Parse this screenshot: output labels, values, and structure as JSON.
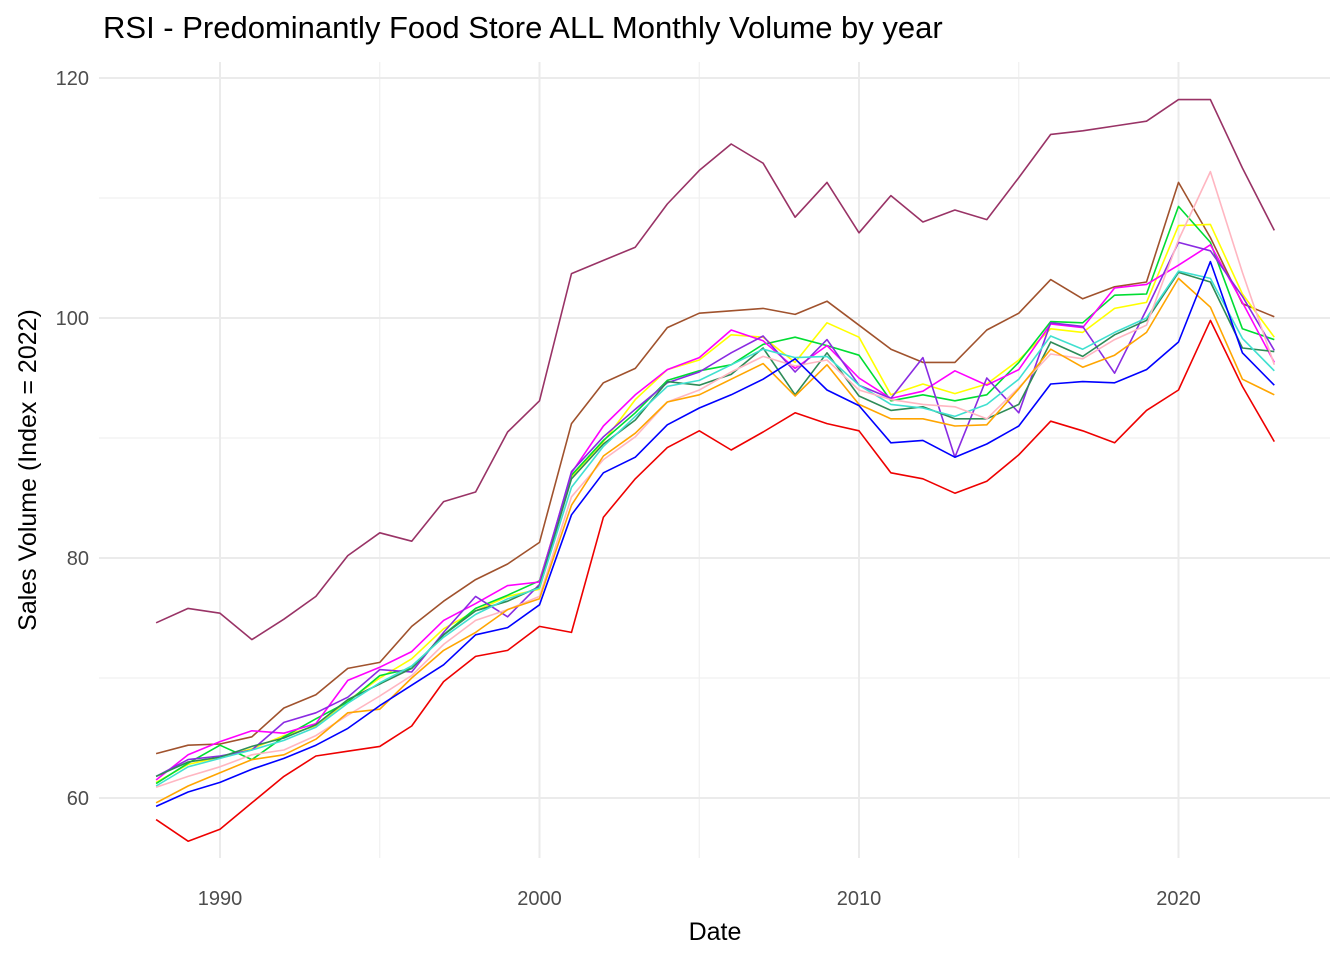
{
  "chart_data": {
    "type": "line",
    "title": "RSI - Predominantly Food Store ALL Monthly Volume by year",
    "xlabel": "Date",
    "ylabel": "Sales Volume (Index = 2022)",
    "xlim": [
      1987.5,
      2023.5
    ],
    "ylim": [
      54.5,
      121.5
    ],
    "xticks": [
      1990,
      2000,
      2010,
      2020
    ],
    "yticks": [
      60,
      80,
      100,
      120
    ],
    "grid": true,
    "legend": "none",
    "x": [
      1988,
      1989,
      1990,
      1991,
      1992,
      1993,
      1994,
      1995,
      1996,
      1997,
      1998,
      1999,
      2000,
      2001,
      2002,
      2003,
      2004,
      2005,
      2006,
      2007,
      2008,
      2009,
      2010,
      2011,
      2012,
      2013,
      2014,
      2015,
      2016,
      2017,
      2018,
      2019,
      2020,
      2021,
      2022,
      2023
    ],
    "series": [
      {
        "color": "#993366",
        "values": [
          74.6,
          75.8,
          75.4,
          73.2,
          74.9,
          76.8,
          80.2,
          82.1,
          81.4,
          84.7,
          85.5,
          90.5,
          93.1,
          103.7,
          104.8,
          105.9,
          109.5,
          112.3,
          114.5,
          112.9,
          108.4,
          111.3,
          107.1,
          110.2,
          108.0,
          109.0,
          108.2,
          111.7,
          115.3,
          115.6,
          116.0,
          116.4,
          118.2,
          118.2,
          112.5,
          107.3
        ]
      },
      {
        "color": "#a0522d",
        "values": [
          63.7,
          64.4,
          64.5,
          65.1,
          67.5,
          68.6,
          70.8,
          71.3,
          74.3,
          76.4,
          78.2,
          79.5,
          81.3,
          91.2,
          94.6,
          95.8,
          99.2,
          100.4,
          100.6,
          100.8,
          100.3,
          101.4,
          99.4,
          97.4,
          96.3,
          96.3,
          99.0,
          100.4,
          103.2,
          101.6,
          102.6,
          103.0,
          111.3,
          106.7,
          101.2,
          100.1
        ]
      },
      {
        "color": "#ffff00",
        "values": [
          61.3,
          62.8,
          63.4,
          64.1,
          65.2,
          66.0,
          68.1,
          70.0,
          71.6,
          74.1,
          75.6,
          76.8,
          77.4,
          86.8,
          89.7,
          93.2,
          95.7,
          96.5,
          98.6,
          98.4,
          96.3,
          99.6,
          98.4,
          93.6,
          94.5,
          93.7,
          94.5,
          96.5,
          99.1,
          98.8,
          100.8,
          101.3,
          107.7,
          107.8,
          102.0,
          98.4
        ]
      },
      {
        "color": "#00dd33",
        "values": [
          61.2,
          62.9,
          64.4,
          63.2,
          65.1,
          66.6,
          68.0,
          70.2,
          70.8,
          73.6,
          75.8,
          76.9,
          78.1,
          86.9,
          89.8,
          92.1,
          94.8,
          95.6,
          96.1,
          97.8,
          98.4,
          97.7,
          96.9,
          93.1,
          93.6,
          93.1,
          93.6,
          96.3,
          99.7,
          99.6,
          101.9,
          102.0,
          109.3,
          106.3,
          99.1,
          98.2
        ]
      },
      {
        "color": "#ff00ff",
        "values": [
          61.5,
          63.6,
          64.7,
          65.6,
          65.4,
          66.2,
          69.8,
          70.9,
          72.2,
          74.8,
          76.2,
          77.7,
          78.0,
          87.1,
          91.0,
          93.6,
          95.7,
          96.7,
          99.0,
          98.1,
          95.8,
          97.7,
          95.0,
          93.3,
          93.9,
          95.6,
          94.4,
          95.7,
          99.5,
          99.2,
          102.5,
          102.8,
          104.4,
          106.1,
          101.3,
          96.3
        ]
      },
      {
        "color": "#8a2be2",
        "values": [
          61.8,
          63.2,
          63.5,
          64.0,
          66.3,
          67.1,
          68.4,
          70.7,
          70.5,
          73.8,
          76.8,
          75.1,
          77.8,
          87.2,
          90.1,
          92.4,
          94.6,
          95.5,
          97.1,
          98.5,
          95.5,
          98.2,
          94.4,
          93.3,
          96.7,
          88.4,
          95.0,
          92.1,
          99.6,
          99.3,
          95.4,
          100.7,
          106.3,
          105.6,
          101.8,
          97.3
        ]
      },
      {
        "color": "#2e8b57",
        "values": [
          61.8,
          63.0,
          63.4,
          64.3,
          65.0,
          66.1,
          68.2,
          69.5,
          70.8,
          73.6,
          75.6,
          76.4,
          77.6,
          86.6,
          89.5,
          91.5,
          94.7,
          94.4,
          95.3,
          97.5,
          93.6,
          97.1,
          93.5,
          92.3,
          92.6,
          91.6,
          91.6,
          92.8,
          98.0,
          96.8,
          98.6,
          99.8,
          103.8,
          103.0,
          97.5,
          97.2
        ]
      },
      {
        "color": "#40e0d0",
        "values": [
          61.0,
          62.6,
          63.3,
          64.0,
          64.8,
          65.9,
          67.9,
          69.6,
          71.0,
          73.4,
          75.3,
          76.6,
          77.5,
          85.9,
          89.3,
          91.8,
          94.3,
          94.8,
          96.1,
          97.4,
          96.7,
          96.8,
          94.4,
          92.8,
          92.5,
          91.8,
          92.8,
          94.9,
          98.5,
          97.4,
          98.8,
          100.0,
          103.9,
          103.3,
          98.3,
          95.6
        ]
      },
      {
        "color": "#ffb6c1",
        "values": [
          60.9,
          61.8,
          62.6,
          63.6,
          64.0,
          65.2,
          66.9,
          68.5,
          70.2,
          72.8,
          74.8,
          75.7,
          76.8,
          85.1,
          88.2,
          90.1,
          93.0,
          94.0,
          95.5,
          96.8,
          96.0,
          96.5,
          94.0,
          93.2,
          92.8,
          92.6,
          91.6,
          94.2,
          97.0,
          96.6,
          98.2,
          99.4,
          106.5,
          112.2,
          103.8,
          96.1
        ]
      },
      {
        "color": "#ffa500",
        "values": [
          59.6,
          61.0,
          62.1,
          63.2,
          63.6,
          64.9,
          67.1,
          67.4,
          70.0,
          72.3,
          73.8,
          75.7,
          76.6,
          84.4,
          88.5,
          90.4,
          93.0,
          93.6,
          94.9,
          96.2,
          93.5,
          96.1,
          92.8,
          91.6,
          91.6,
          91.0,
          91.1,
          94.1,
          97.4,
          95.9,
          96.9,
          98.8,
          103.3,
          100.9,
          94.9,
          93.6
        ]
      },
      {
        "color": "#0000ff",
        "values": [
          59.3,
          60.5,
          61.3,
          62.4,
          63.3,
          64.4,
          65.8,
          67.7,
          69.4,
          71.1,
          73.6,
          74.2,
          76.1,
          83.6,
          87.1,
          88.4,
          91.1,
          92.5,
          93.6,
          94.9,
          96.6,
          94.0,
          92.7,
          89.6,
          89.8,
          88.4,
          89.5,
          91.0,
          94.5,
          94.7,
          94.6,
          95.7,
          98.0,
          104.7,
          97.1,
          94.4
        ]
      },
      {
        "color": "#ee0000",
        "values": [
          58.2,
          56.4,
          57.4,
          59.6,
          61.8,
          63.5,
          63.9,
          64.3,
          66.0,
          69.7,
          71.8,
          72.3,
          74.3,
          73.8,
          83.4,
          86.6,
          89.2,
          90.6,
          89.0,
          90.5,
          92.1,
          91.2,
          90.6,
          87.1,
          86.6,
          85.4,
          86.4,
          88.6,
          91.4,
          90.6,
          89.6,
          92.3,
          94.0,
          99.8,
          94.3,
          89.7
        ]
      }
    ]
  }
}
